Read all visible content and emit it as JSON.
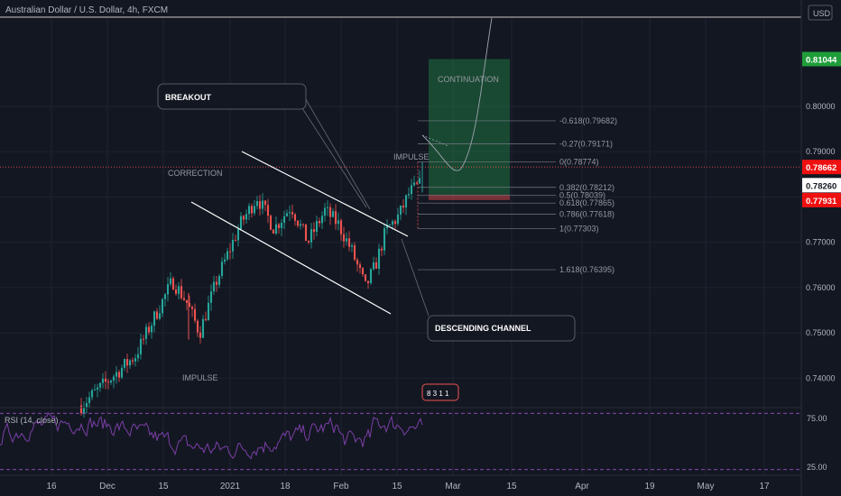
{
  "header": {
    "symbol_title": "Australian Dollar / U.S. Dollar, 4h, FXCM",
    "currency": "USD"
  },
  "colors": {
    "background": "#131722",
    "grid": "#1f2330",
    "up": "#26a69a",
    "down": "#ef5350",
    "rsi_line": "#7b3fa6",
    "rsi_band": "#b05ae0",
    "text": "#b2b5be",
    "badge_green": "#1f9d3a",
    "badge_red": "#ef1010",
    "badge_white": "#ffffff"
  },
  "annotations": {
    "breakout": "BREAKOUT",
    "descending_channel": "DESCENDING CHANNEL",
    "correction": "CORRECTION",
    "impulse_low": "IMPULSE",
    "impulse_high": "IMPULSE",
    "continuation": "CONTINUATION",
    "bar_widget": "8 3  1 1"
  },
  "price_badges": [
    {
      "text": "0.81044",
      "value": 0.81044,
      "style": "green"
    },
    {
      "text": "0.78662",
      "value": 0.78662,
      "style": "red"
    },
    {
      "text": "0.78260",
      "value": 0.7826,
      "style": "white"
    },
    {
      "text": "0.77931",
      "value": 0.77931,
      "style": "red"
    }
  ],
  "rsi": {
    "label": "RSI (14, close)",
    "levels": [
      "75.00",
      "25.00"
    ]
  },
  "chart_data": [
    {
      "type": "candlestick",
      "title": "Australian Dollar / U.S. Dollar, 4h, FXCM",
      "ylim": [
        0.7335,
        0.8195
      ],
      "y_ticks": [
        "0.80000",
        "0.79000",
        "0.78000",
        "0.77000",
        "0.76000",
        "0.75000",
        "0.74000"
      ],
      "y_tick_values": [
        0.8,
        0.79,
        0.78,
        0.77,
        0.76,
        0.75,
        0.74
      ],
      "x_ticks": [
        "16",
        "Dec",
        "15",
        "2021",
        "18",
        "Feb",
        "15",
        "Mar",
        "15",
        "Apr",
        "19",
        "May",
        "17"
      ],
      "key_points": [
        {
          "t": 0,
          "price": 0.734
        },
        {
          "t": 0.2,
          "price": 0.748
        },
        {
          "t": 0.35,
          "price": 0.764
        },
        {
          "t": 0.42,
          "price": 0.755
        },
        {
          "t": 0.52,
          "price": 0.762
        },
        {
          "t": 0.6,
          "price": 0.771
        },
        {
          "t": 0.67,
          "price": 0.779
        },
        {
          "t": 0.74,
          "price": 0.772
        },
        {
          "t": 0.8,
          "price": 0.777
        },
        {
          "t": 0.86,
          "price": 0.771
        },
        {
          "t": 0.92,
          "price": 0.765
        },
        {
          "t": 0.96,
          "price": 0.758
        },
        {
          "t": 1.0,
          "price": 0.766
        }
      ],
      "fibonacci": [
        {
          "label": "-0.618(0.79682)",
          "value": 0.79682
        },
        {
          "label": "-0.27(0.79171)",
          "value": 0.79171
        },
        {
          "label": "0(0.78774)",
          "value": 0.78774
        },
        {
          "label": "0.382(0.78212)",
          "value": 0.78212
        },
        {
          "label": "0.5(0.78039)",
          "value": 0.78039
        },
        {
          "label": "0.618(0.77865)",
          "value": 0.77865
        },
        {
          "label": "0.786(0.77618)",
          "value": 0.77618
        },
        {
          "label": "1(0.77303)",
          "value": 0.77303
        },
        {
          "label": "1.618(0.76395)",
          "value": 0.76395
        }
      ],
      "horizontal_line": {
        "value": 0.78662
      },
      "position": {
        "entry": 0.78052,
        "stop": 0.77931,
        "target": 0.81044
      }
    },
    {
      "type": "line",
      "title": "RSI (14, close)",
      "ylim": [
        20,
        80
      ],
      "levels": [
        75,
        25
      ]
    }
  ]
}
